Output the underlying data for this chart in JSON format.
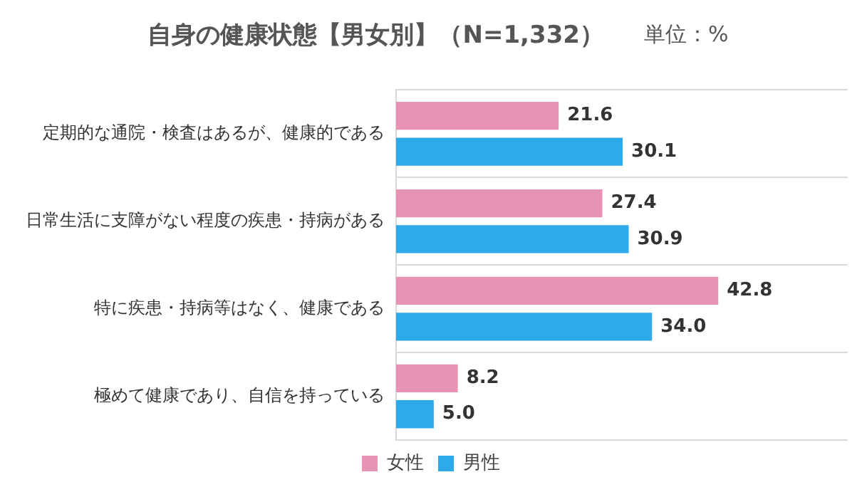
{
  "chart_data": {
    "type": "bar",
    "orientation": "horizontal",
    "title": "自身の健康状態【男女別】（N=1,332）",
    "subtitle": "単位：%",
    "categories": [
      "定期的な通院・検査はあるが、健康的である",
      "日常生活に支障がない程度の疾患・持病がある",
      "特に疾患・持病等はなく、健康である",
      "極めて健康であり、自信を持っている"
    ],
    "series": [
      {
        "name": "女性",
        "color": "#e892b6",
        "values": [
          21.6,
          27.4,
          42.8,
          8.2
        ],
        "value_labels": [
          "21.6",
          "27.4",
          "42.8",
          "8.2"
        ]
      },
      {
        "name": "男性",
        "color": "#2eaaea",
        "values": [
          30.1,
          30.9,
          34.0,
          5.0
        ],
        "value_labels": [
          "30.1",
          "30.9",
          "34.0",
          "5.0"
        ]
      }
    ],
    "xlim": [
      0,
      60
    ],
    "grid": "y",
    "legend": "bottom",
    "tick_labels": "y"
  }
}
